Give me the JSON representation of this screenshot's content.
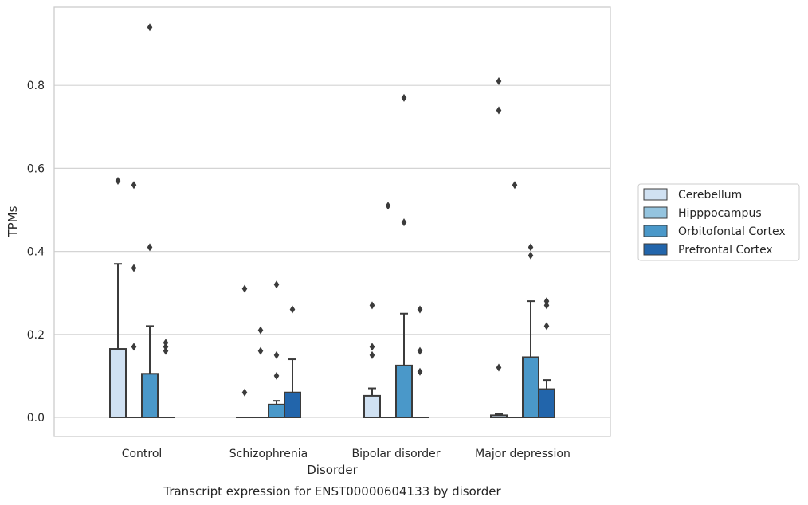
{
  "chart_data": {
    "type": "box",
    "caption": "Transcript expression for ENST00000604133 by disorder",
    "xlabel": "Disorder",
    "ylabel": "TPMs",
    "ylim": [
      -0.045,
      0.99
    ],
    "yticks": [
      0.0,
      0.2,
      0.4,
      0.6,
      0.8
    ],
    "ytick_labels": [
      "0.0",
      "0.2",
      "0.4",
      "0.6",
      "0.8"
    ],
    "grid": "horizontal",
    "legend_position": "right",
    "categories": [
      "Control",
      "Schizophrenia",
      "Bipolar disorder",
      "Major depression"
    ],
    "series": [
      {
        "name": "Cerebellum",
        "color": "#d0e1f2",
        "boxes": [
          {
            "q1": 0.0,
            "median": 0.0,
            "q3": 0.165,
            "whisker_low": 0.0,
            "whisker_high": 0.37,
            "outliers": [
              0.57
            ]
          },
          {
            "q1": 0.0,
            "median": 0.0,
            "q3": 0.0,
            "whisker_low": 0.0,
            "whisker_high": 0.0,
            "outliers": [
              0.06,
              0.31
            ]
          },
          {
            "q1": 0.0,
            "median": 0.0,
            "q3": 0.052,
            "whisker_low": 0.0,
            "whisker_high": 0.07,
            "outliers": [
              0.15,
              0.17,
              0.27
            ]
          },
          {
            "q1": 0.0,
            "median": 0.0,
            "q3": 0.005,
            "whisker_low": 0.0,
            "whisker_high": 0.008,
            "outliers": [
              0.12,
              0.74,
              0.81
            ]
          }
        ]
      },
      {
        "name": "Hipppocampus",
        "color": "#94c4df",
        "boxes": [
          {
            "q1": 0.0,
            "median": 0.0,
            "q3": 0.0,
            "whisker_low": 0.0,
            "whisker_high": 0.0,
            "outliers": [
              0.17,
              0.36,
              0.56
            ]
          },
          {
            "q1": 0.0,
            "median": 0.0,
            "q3": 0.0,
            "whisker_low": 0.0,
            "whisker_high": 0.0,
            "outliers": [
              0.16,
              0.21
            ]
          },
          {
            "q1": 0.0,
            "median": 0.0,
            "q3": 0.0,
            "whisker_low": 0.0,
            "whisker_high": 0.0,
            "outliers": [
              0.51
            ]
          },
          {
            "q1": 0.0,
            "median": 0.0,
            "q3": 0.0,
            "whisker_low": 0.0,
            "whisker_high": 0.0,
            "outliers": [
              0.56
            ]
          }
        ]
      },
      {
        "name": "Orbitofontal Cortex",
        "color": "#4a98c9",
        "boxes": [
          {
            "q1": 0.0,
            "median": 0.0,
            "q3": 0.105,
            "whisker_low": 0.0,
            "whisker_high": 0.22,
            "outliers": [
              0.41,
              0.94
            ]
          },
          {
            "q1": 0.0,
            "median": 0.0,
            "q3": 0.031,
            "whisker_low": 0.0,
            "whisker_high": 0.04,
            "outliers": [
              0.1,
              0.15,
              0.32
            ]
          },
          {
            "q1": 0.0,
            "median": 0.0,
            "q3": 0.125,
            "whisker_low": 0.0,
            "whisker_high": 0.25,
            "outliers": [
              0.47,
              0.77
            ]
          },
          {
            "q1": 0.0,
            "median": 0.0,
            "q3": 0.145,
            "whisker_low": 0.0,
            "whisker_high": 0.28,
            "outliers": [
              0.39,
              0.41
            ]
          }
        ]
      },
      {
        "name": "Prefrontal Cortex",
        "color": "#2265ab",
        "boxes": [
          {
            "q1": 0.0,
            "median": 0.0,
            "q3": 0.0,
            "whisker_low": 0.0,
            "whisker_high": 0.0,
            "outliers": [
              0.16,
              0.17,
              0.18
            ]
          },
          {
            "q1": 0.0,
            "median": 0.0,
            "q3": 0.06,
            "whisker_low": 0.0,
            "whisker_high": 0.14,
            "outliers": [
              0.26
            ]
          },
          {
            "q1": 0.0,
            "median": 0.0,
            "q3": 0.0,
            "whisker_low": 0.0,
            "whisker_high": 0.0,
            "outliers": [
              0.11,
              0.16,
              0.26
            ]
          },
          {
            "q1": 0.0,
            "median": 0.0,
            "q3": 0.068,
            "whisker_low": 0.0,
            "whisker_high": 0.09,
            "outliers": [
              0.22,
              0.27,
              0.28
            ]
          }
        ]
      }
    ]
  }
}
